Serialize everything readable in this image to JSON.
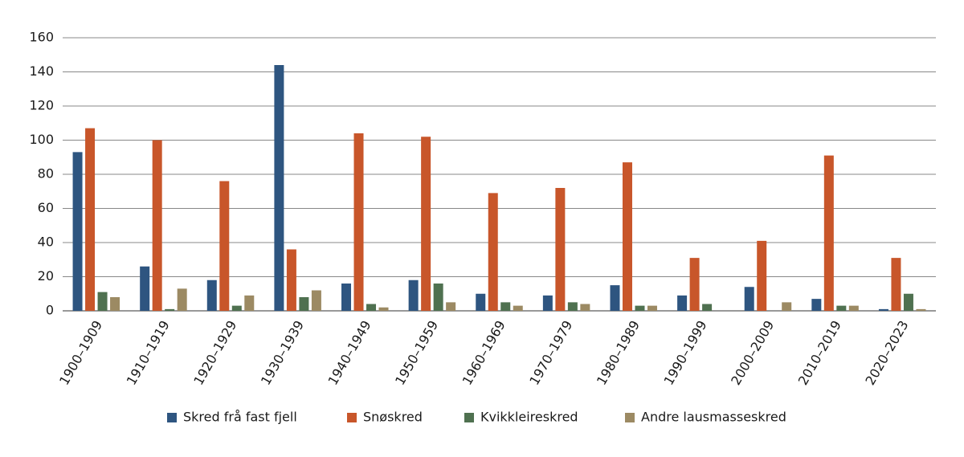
{
  "chart_data": {
    "type": "bar",
    "categories": [
      "1900–1909",
      "1910–1919",
      "1920–1929",
      "1930–1939",
      "1940–1949",
      "1950–1959",
      "1960–1969",
      "1970–1979",
      "1980–1989",
      "1990–1999",
      "2000–2009",
      "2010–2019",
      "2020–2023"
    ],
    "series": [
      {
        "name": "Skred frå fast fjell",
        "color": "#2e5580",
        "values": [
          93,
          26,
          18,
          144,
          16,
          18,
          10,
          9,
          15,
          9,
          14,
          7,
          1
        ]
      },
      {
        "name": "Snøskred",
        "color": "#c8562a",
        "values": [
          107,
          100,
          76,
          36,
          104,
          102,
          69,
          72,
          87,
          31,
          41,
          91,
          31
        ]
      },
      {
        "name": "Kvikkleireskred",
        "color": "#4f7150",
        "values": [
          11,
          1,
          3,
          8,
          4,
          16,
          5,
          5,
          3,
          4,
          0,
          3,
          10
        ]
      },
      {
        "name": "Andre lausmasseskred",
        "color": "#9c8a63",
        "values": [
          8,
          13,
          9,
          12,
          2,
          5,
          3,
          4,
          3,
          0,
          5,
          3,
          1
        ]
      }
    ],
    "ylim": [
      0,
      160
    ],
    "yticks": [
      0,
      20,
      40,
      60,
      80,
      100,
      120,
      140,
      160
    ],
    "grid": true,
    "legend": "bottom"
  }
}
